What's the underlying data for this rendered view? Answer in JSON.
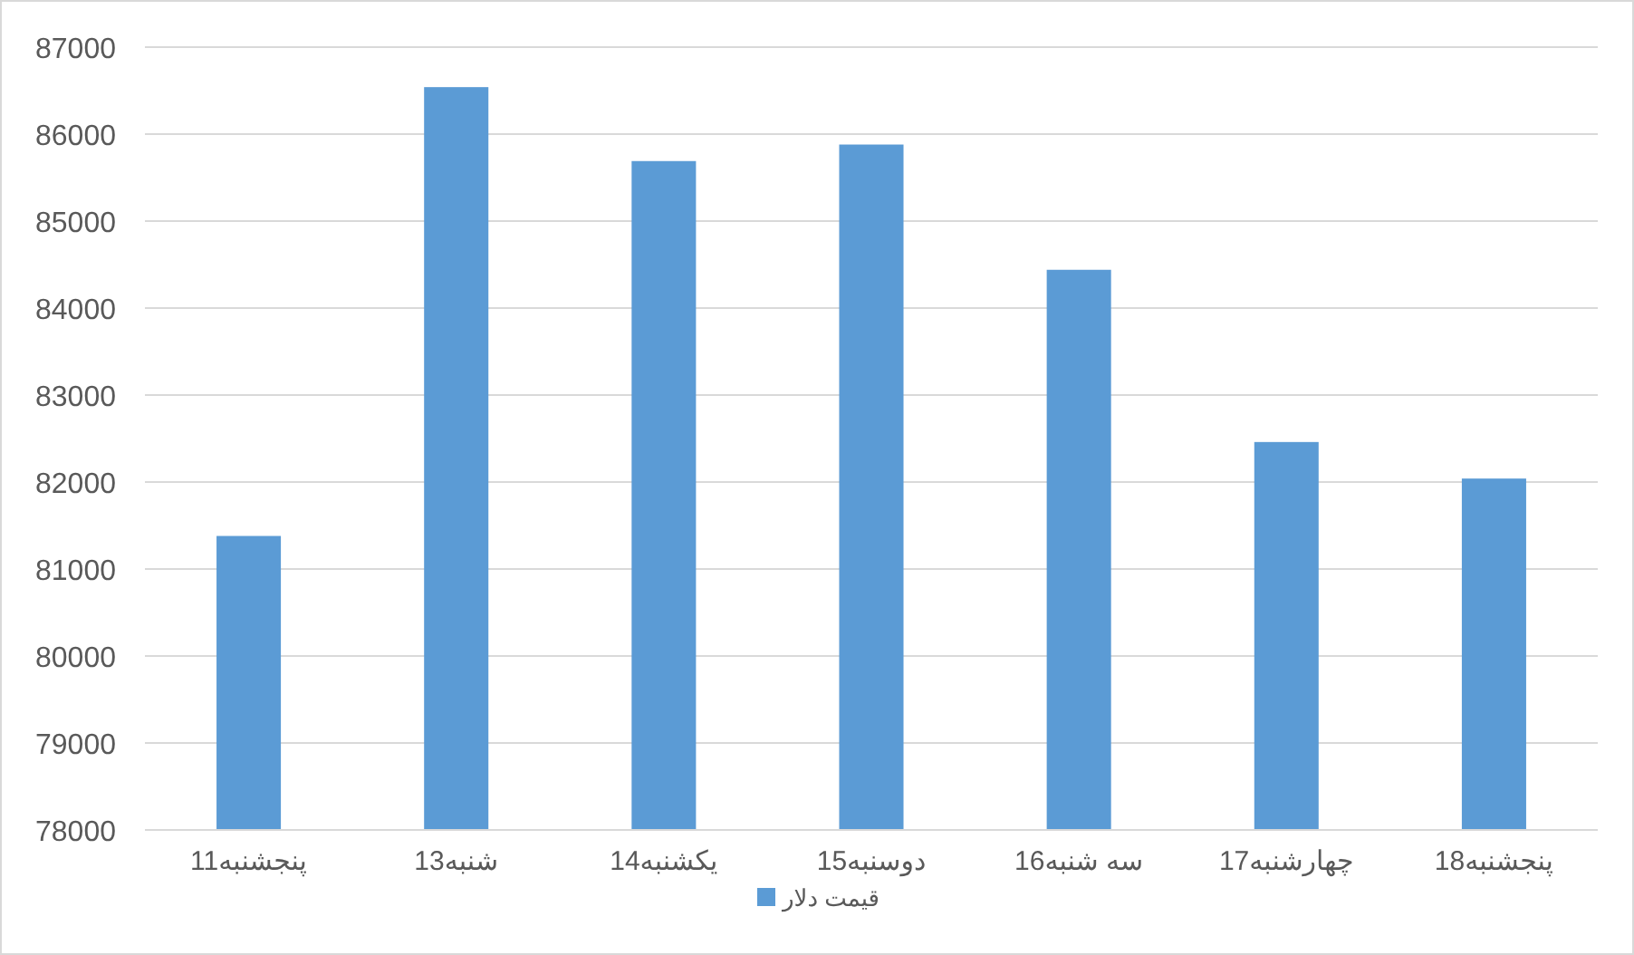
{
  "chart_data": {
    "type": "bar",
    "categories": [
      "پنجشنبه11",
      "شنبه13",
      "یکشنبه14",
      "دوسنبه15",
      "سه شنبه16",
      "چهارشنبه17",
      "پنجشنبه18"
    ],
    "series": [
      {
        "name": "قیمت دلار",
        "color": "#5b9bd5",
        "values": [
          81380,
          86540,
          85690,
          85880,
          84440,
          82460,
          82040
        ]
      }
    ],
    "ylim": [
      78000,
      87000
    ],
    "yticks": [
      78000,
      79000,
      80000,
      81000,
      82000,
      83000,
      84000,
      85000,
      86000,
      87000
    ],
    "grid": "y",
    "legend": "bottom"
  }
}
